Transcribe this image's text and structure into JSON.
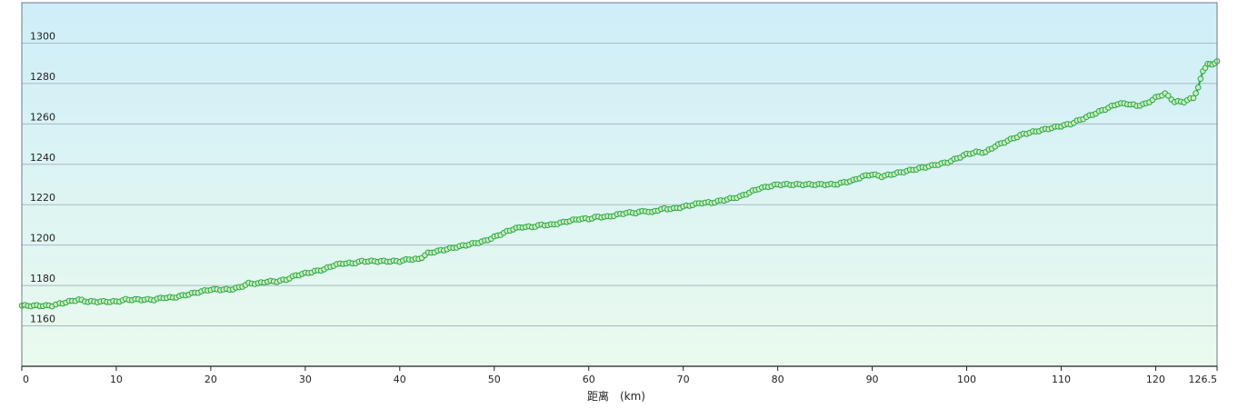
{
  "chart_data": {
    "type": "line",
    "title": "",
    "xlabel": "距离　(km)",
    "ylabel": "",
    "xlim": [
      0,
      126.5
    ],
    "ylim": [
      1140,
      1320
    ],
    "x_ticks": [
      0,
      10,
      20,
      30,
      40,
      50,
      60,
      70,
      80,
      90,
      100,
      110,
      120,
      126.5
    ],
    "x_tick_labels": [
      "0",
      "10",
      "20",
      "30",
      "40",
      "50",
      "60",
      "70",
      "80",
      "90",
      "100",
      "110",
      "120",
      "126.5"
    ],
    "y_ticks": [
      1160,
      1180,
      1200,
      1220,
      1240,
      1260,
      1280,
      1300
    ],
    "y_tick_labels": [
      "1160",
      "1180",
      "1200",
      "1220",
      "1240",
      "1260",
      "1280",
      "1300"
    ],
    "grid": "horizontal",
    "legend": "none",
    "colors": {
      "line": "#2aa745",
      "marker_fill": "#cdeec0",
      "bg_top": "#cfeef9",
      "bg_bottom": "#eafaee",
      "grid": "#a9b9c1"
    },
    "series": [
      {
        "x": [
          0,
          3.2,
          4,
          5,
          6,
          7,
          8,
          9,
          10,
          11,
          12,
          13,
          14,
          15,
          16,
          17,
          18,
          19,
          20,
          21,
          22,
          23,
          24,
          25,
          26,
          27,
          28,
          29,
          30,
          31,
          32,
          33,
          34,
          35,
          36,
          37,
          38,
          39,
          40,
          41,
          42,
          43,
          44,
          45,
          46,
          47,
          48,
          49,
          50,
          51,
          52,
          53,
          54,
          55,
          56,
          57,
          58,
          59,
          60,
          61,
          62,
          63,
          64,
          65,
          66,
          66.7,
          67,
          68,
          69,
          70,
          71,
          72,
          73,
          74,
          75,
          76,
          77,
          78,
          79,
          80,
          81,
          82,
          83,
          84,
          85,
          86,
          87,
          88,
          89,
          90,
          91,
          92,
          93,
          94,
          95,
          96,
          97,
          98,
          99,
          100,
          101,
          102,
          103,
          104,
          105,
          106,
          107,
          108,
          109,
          110,
          111,
          112,
          113,
          114,
          115,
          116,
          117,
          118,
          119,
          120,
          121,
          122,
          123,
          124,
          124.5,
          125,
          125.5,
          126,
          126.5
        ],
        "y": [
          1170,
          1170,
          1171,
          1172,
          1173,
          1172,
          1172,
          1172,
          1172,
          1173,
          1173,
          1173,
          1173,
          1174,
          1174,
          1175,
          1176,
          1177,
          1178,
          1178,
          1178,
          1179,
          1181,
          1181,
          1182,
          1182,
          1183,
          1185,
          1186,
          1187,
          1188,
          1190,
          1191,
          1191,
          1192,
          1192,
          1192,
          1192,
          1192,
          1193,
          1193,
          1196,
          1197,
          1198,
          1199,
          1200,
          1201,
          1202,
          1204,
          1206,
          1208,
          1209,
          1209,
          1210,
          1210,
          1211,
          1212,
          1213,
          1213,
          1214,
          1214,
          1215,
          1216,
          1216,
          1217,
          1216,
          1217,
          1218,
          1218,
          1219,
          1220,
          1221,
          1221,
          1222,
          1223,
          1224,
          1226,
          1228,
          1229,
          1230,
          1230,
          1230,
          1230,
          1230,
          1230,
          1230,
          1231,
          1232,
          1234,
          1235,
          1234,
          1235,
          1236,
          1237,
          1238,
          1239,
          1240,
          1241,
          1243,
          1245,
          1246,
          1246,
          1249,
          1251,
          1253,
          1255,
          1256,
          1257,
          1258,
          1259,
          1260,
          1262,
          1264,
          1266,
          1268,
          1270,
          1270,
          1269,
          1270,
          1273,
          1275,
          1271,
          1271,
          1273,
          1278,
          1286,
          1290,
          1289,
          1291
        ]
      }
    ]
  }
}
